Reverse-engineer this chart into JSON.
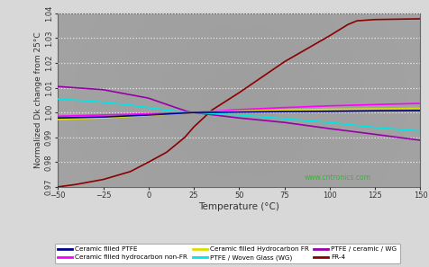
{
  "xlabel": "Temperature (°C)",
  "ylabel": "Normalized Dk change from 25°C",
  "xlim": [
    -50,
    150
  ],
  "ylim": [
    0.97,
    1.04
  ],
  "xticks": [
    -50,
    -25,
    0,
    25,
    50,
    75,
    100,
    125,
    150
  ],
  "yticks": [
    0.97,
    0.98,
    0.99,
    1.0,
    1.01,
    1.02,
    1.03,
    1.04
  ],
  "bg_color": "#a0a0a0",
  "fig_bg": "#d8d8d8",
  "grid_color": "#e8e8e8",
  "series": {
    "ceramic_ptfe": {
      "label": "Ceramic filled PTFE",
      "color": "#00008b",
      "lw": 1.2,
      "x": [
        -50,
        -25,
        0,
        25,
        50,
        75,
        100,
        125,
        150
      ],
      "y": [
        0.9978,
        0.9982,
        0.999,
        1.0,
        1.0002,
        1.0004,
        1.0005,
        1.0007,
        1.0008
      ]
    },
    "ptfe_woven": {
      "label": "PTFE / Woven Glass (WG)",
      "color": "#00e5e5",
      "lw": 1.2,
      "x": [
        -50,
        -30,
        -10,
        0,
        10,
        20,
        25,
        50,
        75,
        100,
        125,
        150
      ],
      "y": [
        1.0055,
        1.0045,
        1.003,
        1.002,
        1.001,
        1.0002,
        1.0,
        0.999,
        0.9975,
        0.996,
        0.994,
        0.9925
      ]
    },
    "ceramic_hc_nonfr": {
      "label": "Ceramic filled hydrocarbon non-FR",
      "color": "#ff00ff",
      "lw": 1.2,
      "x": [
        -50,
        -25,
        0,
        25,
        50,
        75,
        100,
        125,
        150
      ],
      "y": [
        0.9985,
        0.999,
        0.9995,
        1.0,
        1.0012,
        1.002,
        1.0027,
        1.0032,
        1.0037
      ]
    },
    "ptfe_ceramic_wg": {
      "label": "PTFE / ceramic / WG",
      "color": "#9900aa",
      "lw": 1.2,
      "x": [
        -50,
        -25,
        0,
        15,
        22,
        25,
        50,
        75,
        100,
        125,
        150
      ],
      "y": [
        1.0105,
        1.0092,
        1.0058,
        1.002,
        1.0003,
        1.0,
        0.9978,
        0.996,
        0.9935,
        0.9912,
        0.9888
      ]
    },
    "ceramic_hc_fr": {
      "label": "Ceramic filled Hydrocarbon FR",
      "color": "#dddd00",
      "lw": 1.2,
      "x": [
        -50,
        -25,
        0,
        25,
        50,
        75,
        100,
        125,
        150
      ],
      "y": [
        0.9972,
        0.9978,
        0.9988,
        1.0,
        1.0006,
        1.001,
        1.0013,
        1.0015,
        1.0017
      ]
    },
    "fr4": {
      "label": "FR-4",
      "color": "#8b0000",
      "lw": 1.2,
      "x": [
        -50,
        -40,
        -25,
        -10,
        0,
        10,
        20,
        25,
        35,
        50,
        65,
        75,
        90,
        100,
        110,
        115,
        125,
        150
      ],
      "y": [
        0.97,
        0.971,
        0.973,
        0.9762,
        0.98,
        0.984,
        0.99,
        0.9942,
        1.001,
        1.008,
        1.0155,
        1.0205,
        1.0268,
        1.031,
        1.0355,
        1.037,
        1.0375,
        1.0378
      ]
    }
  },
  "watermark": "www.cntronics.com",
  "legend_items": [
    {
      "label": "Ceramic filled PTFE",
      "color": "#00008b"
    },
    {
      "label": "Ceramic filled hydrocarbon non-FR",
      "color": "#ff00ff"
    },
    {
      "label": "Ceramic filled Hydrocarbon FR",
      "color": "#dddd00"
    },
    {
      "label": "PTFE / Woven Glass (WG)",
      "color": "#00e5e5"
    },
    {
      "label": "PTFE / ceramic / WG",
      "color": "#9900aa"
    },
    {
      "label": "FR-4",
      "color": "#8b0000"
    }
  ]
}
